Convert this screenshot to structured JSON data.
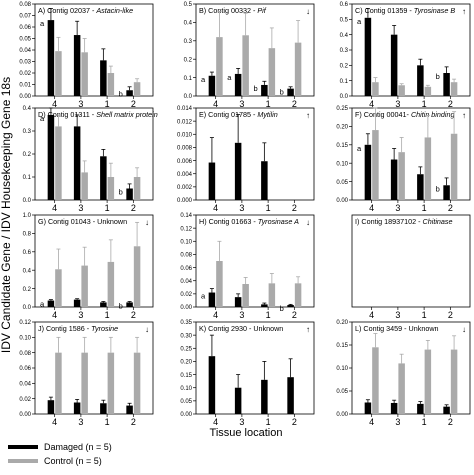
{
  "axis_title_y": "IDV Candidate Gene / IDV Housekeeping Gene 18s",
  "axis_title_x": "Tissue location",
  "legend": [
    {
      "label": "Damaged (n = 5)",
      "color": "#000000"
    },
    {
      "label": "Control (n = 5)",
      "color": "#aaaaaa"
    }
  ],
  "colors": {
    "damaged": "#000000",
    "control": "#aaaaaa"
  },
  "chart_data": [
    {
      "type": "bar",
      "panel": "A",
      "title_prefix": "A) Contig 02037 - ",
      "gene": "Astacin-like",
      "arrow": "",
      "categories": [
        "4",
        "3",
        "1",
        "2"
      ],
      "ylim": [
        0,
        0.08
      ],
      "yticks": [
        0.0,
        0.01,
        0.02,
        0.03,
        0.04,
        0.05,
        0.06,
        0.07,
        0.08
      ],
      "ytick_labels": [
        "0.00",
        "0.01",
        "0.02",
        "0.03",
        "0.04",
        "0.05",
        "0.06",
        "0.07",
        "0.08"
      ],
      "series": [
        {
          "name": "Damaged (n = 5)",
          "values": [
            0.066,
            0.053,
            0.031,
            0.005
          ],
          "errors": [
            0.01,
            0.012,
            0.01,
            0.003
          ]
        },
        {
          "name": "Control (n = 5)",
          "values": [
            0.039,
            0.038,
            0.02,
            0.012
          ],
          "errors": [
            0.012,
            0.012,
            0.006,
            0.003
          ]
        }
      ],
      "annotations": [
        {
          "text": "a",
          "category": 0
        },
        {
          "text": "b",
          "category": 3
        }
      ]
    },
    {
      "type": "bar",
      "panel": "B",
      "title_prefix": "B) Contig 00332 - ",
      "gene": "Pif",
      "arrow": "↓",
      "categories": [
        "4",
        "3",
        "1",
        "2"
      ],
      "ylim": [
        0,
        0.5
      ],
      "yticks": [
        0.0,
        0.1,
        0.2,
        0.3,
        0.4,
        0.5
      ],
      "ytick_labels": [
        "0.0",
        "0.1",
        "0.2",
        "0.3",
        "0.4",
        "0.5"
      ],
      "series": [
        {
          "name": "Damaged (n = 5)",
          "values": [
            0.11,
            0.12,
            0.06,
            0.04
          ],
          "errors": [
            0.02,
            0.03,
            0.02,
            0.01
          ]
        },
        {
          "name": "Control (n = 5)",
          "values": [
            0.32,
            0.33,
            0.26,
            0.29
          ],
          "errors": [
            0.14,
            0.12,
            0.11,
            0.12
          ]
        }
      ],
      "annotations": [
        {
          "text": "a",
          "category": 0
        },
        {
          "text": "a",
          "category": 1
        },
        {
          "text": "b",
          "category": 2
        },
        {
          "text": "b",
          "category": 3
        }
      ]
    },
    {
      "type": "bar",
      "panel": "C",
      "title_prefix": "C) Contig 01359 - ",
      "gene": "Tyrosinase B",
      "arrow": "↑",
      "categories": [
        "4",
        "3",
        "1",
        "2"
      ],
      "ylim": [
        0,
        0.6
      ],
      "yticks": [
        0.0,
        0.1,
        0.2,
        0.3,
        0.4,
        0.5,
        0.6
      ],
      "ytick_labels": [
        "0.0",
        "0.1",
        "0.2",
        "0.3",
        "0.4",
        "0.5",
        "0.6"
      ],
      "series": [
        {
          "name": "Damaged (n = 5)",
          "values": [
            0.51,
            0.4,
            0.2,
            0.15
          ],
          "errors": [
            0.06,
            0.06,
            0.04,
            0.04
          ]
        },
        {
          "name": "Control (n = 5)",
          "values": [
            0.09,
            0.07,
            0.06,
            0.09
          ],
          "errors": [
            0.03,
            0.01,
            0.01,
            0.02
          ]
        }
      ],
      "annotations": [
        {
          "text": "a",
          "category": 0
        },
        {
          "text": "b",
          "category": 3
        }
      ]
    },
    {
      "type": "bar",
      "panel": "D",
      "title_prefix": "D) Contig 01311 - ",
      "gene": "Shell matrix protein",
      "arrow": "",
      "categories": [
        "4",
        "3",
        "1",
        "2"
      ],
      "ylim": [
        0,
        0.4
      ],
      "yticks": [
        0.0,
        0.1,
        0.2,
        0.3,
        0.4
      ],
      "ytick_labels": [
        "0.0",
        "0.1",
        "0.2",
        "0.3",
        "0.4"
      ],
      "series": [
        {
          "name": "Damaged (n = 5)",
          "values": [
            0.37,
            0.32,
            0.19,
            0.05
          ],
          "errors": [
            0.03,
            0.05,
            0.03,
            0.02
          ]
        },
        {
          "name": "Control (n = 5)",
          "values": [
            0.32,
            0.12,
            0.1,
            0.1
          ],
          "errors": [
            0.05,
            0.05,
            0.06,
            0.04
          ]
        }
      ],
      "annotations": [
        {
          "text": "a",
          "category": 0
        },
        {
          "text": "b",
          "category": 3
        }
      ]
    },
    {
      "type": "bar",
      "panel": "E",
      "title_prefix": "E) Contig      01785 - ",
      "gene": "Mytilin",
      "arrow": "↑",
      "categories": [
        "4",
        "3",
        "1",
        "2"
      ],
      "ylim": [
        0,
        0.014
      ],
      "yticks": [
        0.0,
        0.002,
        0.004,
        0.006,
        0.008,
        0.01,
        0.012,
        0.014
      ],
      "ytick_labels": [
        "0.000",
        "0.002",
        "0.004",
        "0.006",
        "0.008",
        "0.010",
        "0.012",
        "0.014"
      ],
      "series": [
        {
          "name": "Damaged (n = 5)",
          "values": [
            0.0057,
            0.0087,
            0.0059,
            0
          ],
          "errors": [
            0.0038,
            0.0043,
            0.0028,
            0
          ]
        },
        {
          "name": "Control (n = 5)",
          "values": [
            0,
            0,
            0,
            0
          ],
          "errors": [
            0,
            0,
            0,
            0
          ]
        }
      ],
      "annotations": []
    },
    {
      "type": "bar",
      "panel": "F",
      "title_prefix": "F) Contig 00041- ",
      "gene": "Chitin binding",
      "arrow": "↑",
      "categories": [
        "4",
        "3",
        "1",
        "2"
      ],
      "ylim": [
        0,
        0.25
      ],
      "yticks": [
        0.0,
        0.05,
        0.1,
        0.15,
        0.2,
        0.25
      ],
      "ytick_labels": [
        "0.00",
        "0.05",
        "0.10",
        "0.15",
        "0.20",
        "0.25"
      ],
      "series": [
        {
          "name": "Damaged (n = 5)",
          "values": [
            0.15,
            0.11,
            0.07,
            0.04
          ],
          "errors": [
            0.03,
            0.03,
            0.02,
            0.02
          ]
        },
        {
          "name": "Control (n = 5)",
          "values": [
            0.19,
            0.13,
            0.17,
            0.18
          ],
          "errors": [
            0.06,
            0.04,
            0.06,
            0.06
          ]
        }
      ],
      "annotations": [
        {
          "text": "a",
          "category": 0
        },
        {
          "text": "b",
          "category": 3
        }
      ]
    },
    {
      "type": "bar",
      "panel": "G",
      "title_prefix": "G) Contig 01043 - Unknown",
      "gene": "",
      "arrow": "↓",
      "categories": [
        "4",
        "3",
        "1",
        "2"
      ],
      "ylim": [
        0,
        1.0
      ],
      "yticks": [
        0.0,
        0.2,
        0.4,
        0.6,
        0.8,
        1.0
      ],
      "ytick_labels": [
        "0.0",
        "0.2",
        "0.4",
        "0.6",
        "0.8",
        "1.0"
      ],
      "series": [
        {
          "name": "Damaged (n = 5)",
          "values": [
            0.07,
            0.08,
            0.05,
            0.05
          ],
          "errors": [
            0.01,
            0.01,
            0.01,
            0.01
          ]
        },
        {
          "name": "Control (n = 5)",
          "values": [
            0.41,
            0.45,
            0.49,
            0.66
          ],
          "errors": [
            0.22,
            0.2,
            0.24,
            0.26
          ]
        }
      ],
      "annotations": [
        {
          "text": "a",
          "category": 0
        },
        {
          "text": "b",
          "category": 3
        }
      ]
    },
    {
      "type": "bar",
      "panel": "H",
      "title_prefix": "H) Contig 01663 - ",
      "gene": "Tyrosinase A",
      "arrow": "↓",
      "categories": [
        "4",
        "3",
        "1",
        "2"
      ],
      "ylim": [
        0,
        0.14
      ],
      "yticks": [
        0.0,
        0.02,
        0.04,
        0.06,
        0.08,
        0.1,
        0.12,
        0.14
      ],
      "ytick_labels": [
        "0.00",
        "0.02",
        "0.04",
        "0.06",
        "0.08",
        "0.10",
        "0.12",
        "0.14"
      ],
      "series": [
        {
          "name": "Damaged (n = 5)",
          "values": [
            0.022,
            0.015,
            0.004,
            0.003
          ],
          "errors": [
            0.006,
            0.005,
            0.002,
            0.001
          ]
        },
        {
          "name": "Control (n = 5)",
          "values": [
            0.07,
            0.035,
            0.036,
            0.036
          ],
          "errors": [
            0.03,
            0.01,
            0.015,
            0.01
          ]
        }
      ],
      "annotations": [
        {
          "text": "a",
          "category": 0
        },
        {
          "text": "b",
          "category": 3
        }
      ]
    },
    {
      "type": "bar",
      "panel": "I",
      "title_prefix": "I) Contig 18937102 - ",
      "gene": "Chitinase",
      "arrow": "",
      "categories": [
        "4",
        "3",
        "1",
        "2"
      ],
      "ylim": [
        0,
        1
      ],
      "yticks": [],
      "ytick_labels": [],
      "series": [
        {
          "name": "Damaged (n = 5)",
          "values": [
            0,
            0,
            0,
            0
          ],
          "errors": [
            0,
            0,
            0,
            0
          ]
        },
        {
          "name": "Control (n = 5)",
          "values": [
            0,
            0,
            0,
            0
          ],
          "errors": [
            0,
            0,
            0,
            0
          ]
        }
      ],
      "annotations": []
    },
    {
      "type": "bar",
      "panel": "J",
      "title_prefix": "J) Contig 1586 - ",
      "gene": "Tyrosine",
      "arrow": "↓",
      "categories": [
        "4",
        "3",
        "1",
        "2"
      ],
      "ylim": [
        0,
        0.12
      ],
      "yticks": [
        0.0,
        0.02,
        0.04,
        0.06,
        0.08,
        0.1,
        0.12
      ],
      "ytick_labels": [
        "0.00",
        "0.02",
        "0.04",
        "0.06",
        "0.08",
        "0.10",
        "0.12"
      ],
      "series": [
        {
          "name": "Damaged (n = 5)",
          "values": [
            0.018,
            0.015,
            0.014,
            0.011
          ],
          "errors": [
            0.004,
            0.004,
            0.004,
            0.003
          ]
        },
        {
          "name": "Control (n = 5)",
          "values": [
            0.08,
            0.08,
            0.08,
            0.08
          ],
          "errors": [
            0.02,
            0.02,
            0.02,
            0.02
          ]
        }
      ],
      "annotations": []
    },
    {
      "type": "bar",
      "panel": "K",
      "title_prefix": "K) Contig 2930 - Unknown",
      "gene": "",
      "arrow": "↑",
      "categories": [
        "4",
        "3",
        "1",
        "2"
      ],
      "ylim": [
        0,
        0.35
      ],
      "yticks": [
        0.0,
        0.05,
        0.1,
        0.15,
        0.2,
        0.25,
        0.3,
        0.35
      ],
      "ytick_labels": [
        "0.00",
        "0.05",
        "0.10",
        "0.15",
        "0.20",
        "0.25",
        "0.30",
        "0.35"
      ],
      "series": [
        {
          "name": "Damaged (n = 5)",
          "values": [
            0.22,
            0.1,
            0.13,
            0.14
          ],
          "errors": [
            0.08,
            0.05,
            0.07,
            0.07
          ]
        },
        {
          "name": "Control (n = 5)",
          "values": [
            0,
            0,
            0,
            0
          ],
          "errors": [
            0,
            0,
            0,
            0
          ]
        }
      ],
      "annotations": []
    },
    {
      "type": "bar",
      "panel": "L",
      "title_prefix": "L) Contig 3459 - Unknown",
      "gene": "",
      "arrow": "↓",
      "categories": [
        "4",
        "3",
        "1",
        "2"
      ],
      "ylim": [
        0,
        0.2
      ],
      "yticks": [
        0.0,
        0.05,
        0.1,
        0.15,
        0.2
      ],
      "ytick_labels": [
        "0.00",
        "0.05",
        "0.10",
        "0.15",
        "0.20"
      ],
      "series": [
        {
          "name": "Damaged (n = 5)",
          "values": [
            0.025,
            0.024,
            0.022,
            0.016
          ],
          "errors": [
            0.006,
            0.006,
            0.005,
            0.004
          ]
        },
        {
          "name": "Control (n = 5)",
          "values": [
            0.145,
            0.11,
            0.14,
            0.14
          ],
          "errors": [
            0.03,
            0.02,
            0.02,
            0.03
          ]
        }
      ],
      "annotations": []
    }
  ]
}
